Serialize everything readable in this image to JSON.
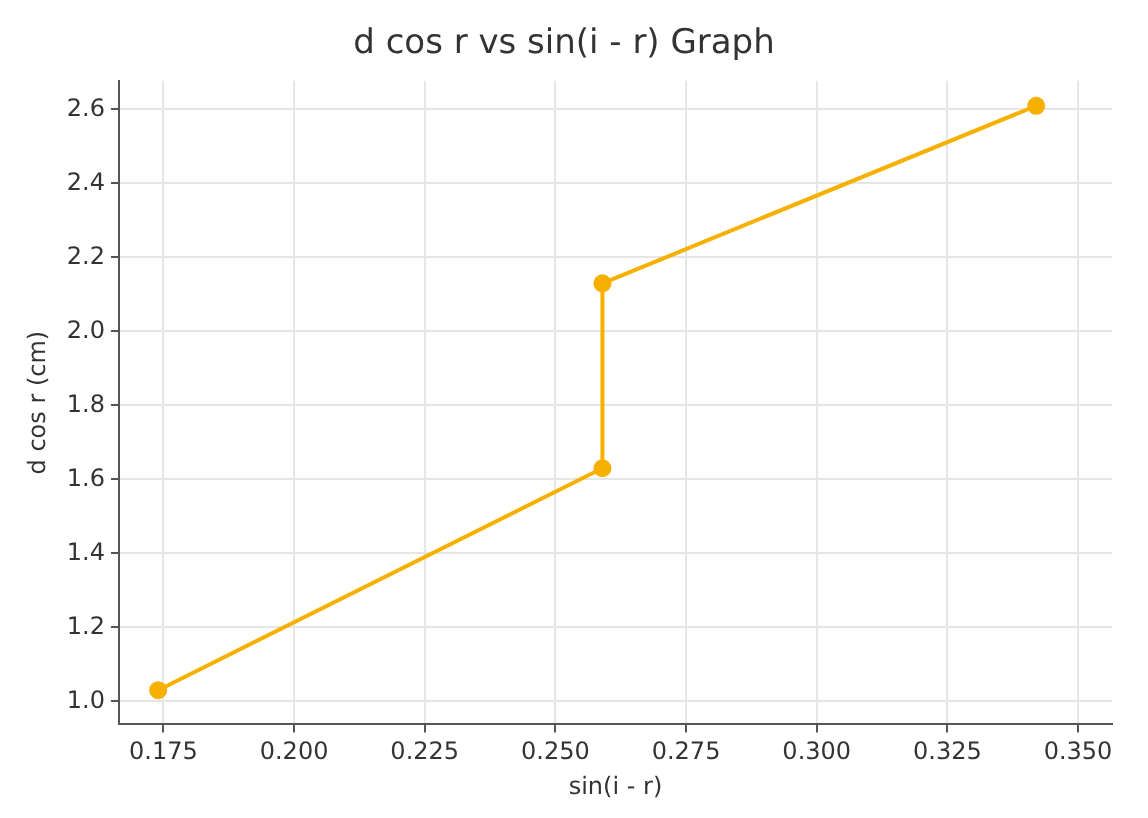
{
  "chart_data": {
    "type": "line",
    "title": "d cos r vs sin(i - r) Graph",
    "xlabel": "sin(i - r)",
    "ylabel": "d cos r (cm)",
    "x": [
      0.174,
      0.259,
      0.259,
      0.342
    ],
    "series": [
      {
        "color": "#f5b000",
        "values": [
          1.03,
          1.63,
          2.13,
          2.61
        ]
      }
    ],
    "xlim": [
      0.1665,
      0.3565
    ],
    "ylim": [
      0.9375,
      2.6775
    ],
    "xticks": [
      0.175,
      {
        "value": 0.2,
        "label": "0.200"
      },
      0.225,
      {
        "value": 0.25,
        "label": "0.250"
      },
      0.275,
      {
        "value": 0.3,
        "label": "0.300"
      },
      0.325,
      {
        "value": 0.35,
        "label": "0.350"
      }
    ],
    "yticks": [
      {
        "value": 1,
        "label": "1.0"
      },
      1.2,
      1.4,
      1.6,
      1.8,
      {
        "value": 2,
        "label": "2.0"
      },
      2.2,
      2.4,
      2.6
    ],
    "grid": true,
    "legend": false,
    "marker": "circle",
    "line_style": "solid"
  }
}
